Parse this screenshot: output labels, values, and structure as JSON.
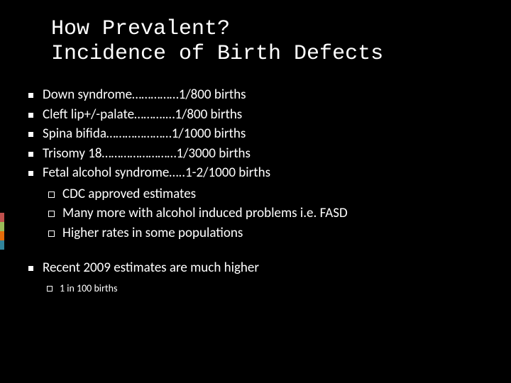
{
  "title": {
    "line1": "How Prevalent?",
    "line2": "Incidence of Birth Defects"
  },
  "accent_colors": [
    "#c0504d",
    "#9bbb59",
    "#e46c0a",
    "#31849b"
  ],
  "bullets": [
    {
      "text": "Down syndrome……………1/800 births"
    },
    {
      "text": "Cleft lip+/-palate……….…1/800 births"
    },
    {
      "text": "Spina bifida…………………1/1000 births"
    },
    {
      "text": "Trisomy 18……………………1/3000 births"
    },
    {
      "text": "Fetal alcohol syndrome…..1-2/1000 births",
      "sub": [
        "CDC approved estimates",
        "Many more with alcohol induced problems i.e. FASD",
        "Higher rates in some populations"
      ]
    }
  ],
  "recent": {
    "text": "Recent 2009 estimates are much higher",
    "sub": [
      "1 in 100 births"
    ]
  }
}
